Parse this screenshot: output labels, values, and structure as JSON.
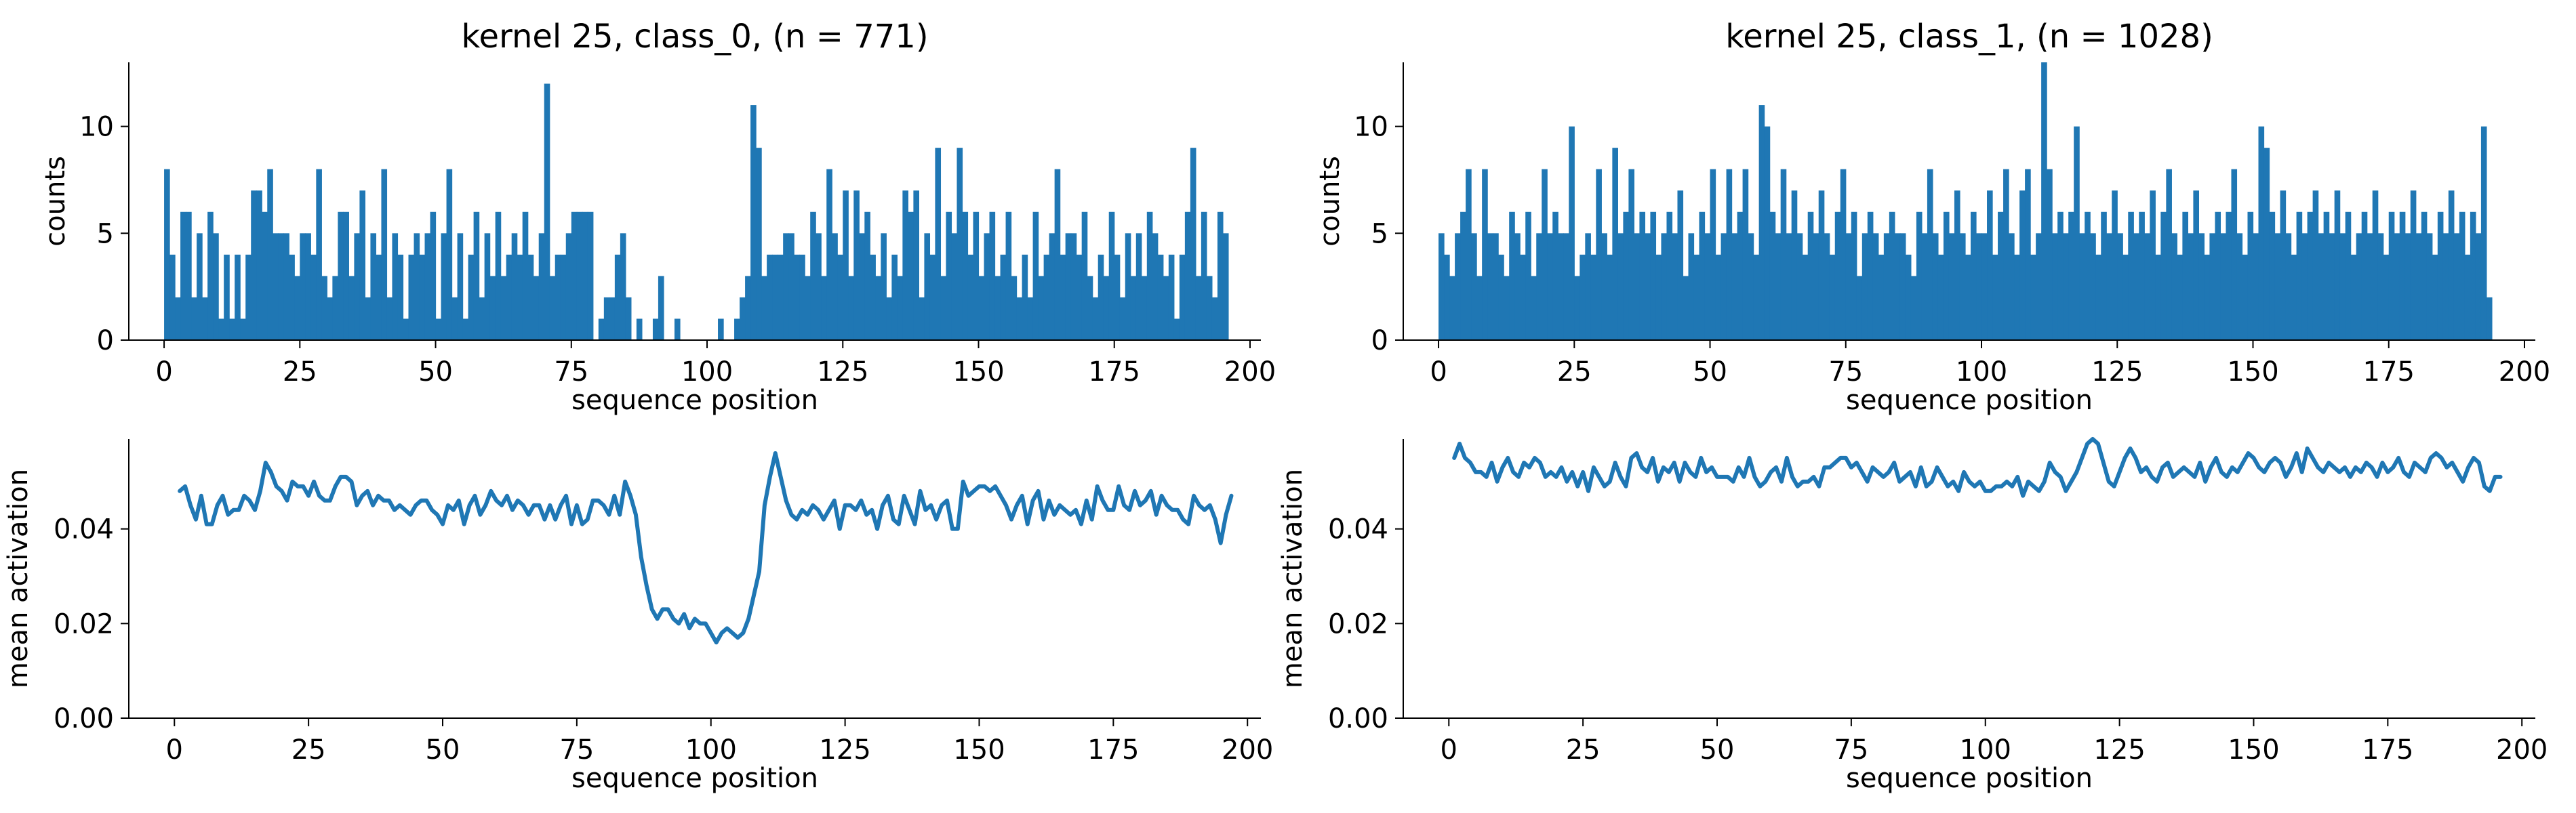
{
  "figure": {
    "background": "#ffffff",
    "series_color": "#1f77b4",
    "axis_color": "#000000"
  },
  "chart_data": [
    {
      "type": "bar",
      "title": "kernel 25, class_0, (n = 771)",
      "xlabel": "sequence position",
      "ylabel": "counts",
      "xlim": [
        -6.5,
        202
      ],
      "ylim": [
        0,
        13
      ],
      "xticks": [
        "0",
        "25",
        "50",
        "75",
        "100",
        "125",
        "150",
        "175",
        "200"
      ],
      "xtick_values": [
        0,
        25,
        50,
        75,
        100,
        125,
        150,
        175,
        200
      ],
      "yticks": [
        "0",
        "5",
        "10"
      ],
      "ytick_values": [
        0,
        5,
        10
      ],
      "grid": false,
      "x_start": 0,
      "bin_width": 1,
      "values": [
        8,
        4,
        2,
        6,
        6,
        2,
        5,
        2,
        6,
        5,
        1,
        4,
        1,
        4,
        1,
        4,
        7,
        7,
        6,
        8,
        5,
        5,
        5,
        4,
        3,
        5,
        5,
        4,
        8,
        3,
        2,
        3,
        6,
        6,
        3,
        5,
        7,
        2,
        5,
        4,
        8,
        2,
        5,
        4,
        1,
        4,
        5,
        4,
        5,
        6,
        1,
        5,
        8,
        2,
        5,
        1,
        4,
        6,
        2,
        5,
        3,
        6,
        3,
        4,
        5,
        4,
        6,
        4,
        3,
        5,
        12,
        3,
        4,
        4,
        5,
        6,
        6,
        6,
        6,
        0,
        1,
        2,
        2,
        4,
        5,
        2,
        0,
        1,
        0,
        0,
        1,
        3,
        0,
        0,
        1,
        0,
        0,
        0,
        0,
        0,
        0,
        0,
        1,
        0,
        0,
        1,
        2,
        3,
        11,
        9,
        3,
        4,
        4,
        4,
        5,
        5,
        4,
        4,
        3,
        6,
        5,
        3,
        8,
        5,
        4,
        7,
        3,
        7,
        5,
        6,
        4,
        3,
        5,
        2,
        4,
        3,
        7,
        6,
        7,
        2,
        5,
        4,
        9,
        3,
        6,
        5,
        9,
        6,
        4,
        6,
        3,
        5,
        6,
        3,
        4,
        6,
        3,
        2,
        4,
        2,
        6,
        3,
        4,
        5,
        8,
        4,
        5,
        5,
        4,
        6,
        3,
        2,
        4,
        3,
        6,
        4,
        2,
        5,
        3,
        5,
        3,
        6,
        5,
        4,
        3,
        4,
        1,
        4,
        6,
        9,
        3,
        6,
        3,
        2,
        6,
        5
      ]
    },
    {
      "type": "bar",
      "title": "kernel 25, class_1, (n = 1028)",
      "xlabel": "sequence position",
      "ylabel": "counts",
      "xlim": [
        -6.5,
        202
      ],
      "ylim": [
        0,
        13
      ],
      "xticks": [
        "0",
        "25",
        "50",
        "75",
        "100",
        "125",
        "150",
        "175",
        "200"
      ],
      "xtick_values": [
        0,
        25,
        50,
        75,
        100,
        125,
        150,
        175,
        200
      ],
      "yticks": [
        "0",
        "5",
        "10"
      ],
      "ytick_values": [
        0,
        5,
        10
      ],
      "grid": false,
      "x_start": 0,
      "bin_width": 1,
      "values": [
        5,
        4,
        3,
        5,
        6,
        8,
        5,
        3,
        8,
        5,
        5,
        4,
        3,
        6,
        5,
        4,
        6,
        3,
        5,
        8,
        5,
        6,
        5,
        5,
        10,
        3,
        4,
        5,
        4,
        8,
        5,
        4,
        9,
        5,
        6,
        8,
        5,
        6,
        5,
        6,
        4,
        5,
        6,
        5,
        7,
        3,
        5,
        4,
        6,
        5,
        8,
        4,
        5,
        8,
        5,
        6,
        8,
        5,
        4,
        11,
        10,
        6,
        5,
        8,
        5,
        7,
        5,
        4,
        6,
        5,
        7,
        5,
        4,
        6,
        8,
        5,
        6,
        3,
        5,
        6,
        5,
        4,
        5,
        6,
        5,
        5,
        4,
        3,
        6,
        5,
        8,
        5,
        4,
        6,
        5,
        7,
        5,
        4,
        6,
        5,
        5,
        7,
        4,
        6,
        8,
        5,
        4,
        7,
        8,
        4,
        5,
        13,
        8,
        5,
        6,
        5,
        6,
        10,
        5,
        6,
        5,
        4,
        6,
        5,
        7,
        5,
        4,
        6,
        5,
        6,
        5,
        7,
        4,
        6,
        8,
        5,
        4,
        6,
        5,
        7,
        5,
        4,
        5,
        6,
        5,
        6,
        8,
        5,
        4,
        6,
        5,
        10,
        9,
        6,
        5,
        7,
        5,
        4,
        6,
        5,
        6,
        7,
        5,
        6,
        5,
        7,
        5,
        6,
        4,
        5,
        6,
        5,
        7,
        5,
        4,
        6,
        5,
        6,
        5,
        7,
        5,
        6,
        5,
        4,
        6,
        5,
        7,
        5,
        6,
        4,
        6,
        5,
        10,
        2
      ]
    },
    {
      "type": "line",
      "title": "",
      "xlabel": "sequence position",
      "ylabel": "mean activation",
      "xlim": [
        -8.5,
        202.5
      ],
      "ylim": [
        0,
        0.059
      ],
      "xticks": [
        "0",
        "25",
        "50",
        "75",
        "100",
        "125",
        "150",
        "175",
        "200"
      ],
      "xtick_values": [
        0,
        25,
        50,
        75,
        100,
        125,
        150,
        175,
        200
      ],
      "yticks": [
        "0.00",
        "0.02",
        "0.04"
      ],
      "ytick_values": [
        0,
        0.02,
        0.04
      ],
      "grid": false,
      "x_start": 1,
      "x_step": 1,
      "y": [
        0.048,
        0.049,
        0.045,
        0.042,
        0.047,
        0.041,
        0.041,
        0.045,
        0.047,
        0.043,
        0.044,
        0.044,
        0.047,
        0.046,
        0.044,
        0.048,
        0.054,
        0.052,
        0.049,
        0.048,
        0.046,
        0.05,
        0.049,
        0.049,
        0.047,
        0.05,
        0.047,
        0.046,
        0.046,
        0.049,
        0.051,
        0.051,
        0.05,
        0.045,
        0.047,
        0.048,
        0.045,
        0.047,
        0.046,
        0.046,
        0.044,
        0.045,
        0.044,
        0.043,
        0.045,
        0.046,
        0.046,
        0.044,
        0.043,
        0.041,
        0.045,
        0.044,
        0.046,
        0.041,
        0.045,
        0.047,
        0.043,
        0.045,
        0.048,
        0.046,
        0.045,
        0.047,
        0.044,
        0.046,
        0.045,
        0.043,
        0.045,
        0.045,
        0.042,
        0.045,
        0.042,
        0.045,
        0.047,
        0.041,
        0.045,
        0.041,
        0.042,
        0.046,
        0.046,
        0.045,
        0.043,
        0.047,
        0.043,
        0.05,
        0.047,
        0.043,
        0.034,
        0.028,
        0.023,
        0.021,
        0.023,
        0.023,
        0.021,
        0.02,
        0.022,
        0.019,
        0.021,
        0.02,
        0.02,
        0.018,
        0.016,
        0.018,
        0.019,
        0.018,
        0.017,
        0.018,
        0.021,
        0.026,
        0.031,
        0.045,
        0.051,
        0.056,
        0.051,
        0.046,
        0.043,
        0.042,
        0.044,
        0.043,
        0.045,
        0.044,
        0.042,
        0.044,
        0.046,
        0.04,
        0.045,
        0.045,
        0.044,
        0.046,
        0.043,
        0.044,
        0.04,
        0.045,
        0.047,
        0.042,
        0.041,
        0.047,
        0.044,
        0.041,
        0.048,
        0.044,
        0.045,
        0.042,
        0.045,
        0.046,
        0.04,
        0.04,
        0.05,
        0.047,
        0.048,
        0.049,
        0.049,
        0.048,
        0.049,
        0.047,
        0.045,
        0.042,
        0.045,
        0.047,
        0.041,
        0.046,
        0.048,
        0.042,
        0.046,
        0.043,
        0.045,
        0.044,
        0.043,
        0.044,
        0.041,
        0.046,
        0.042,
        0.049,
        0.046,
        0.044,
        0.044,
        0.049,
        0.045,
        0.044,
        0.048,
        0.045,
        0.046,
        0.048,
        0.043,
        0.047,
        0.045,
        0.044,
        0.044,
        0.042,
        0.041,
        0.047,
        0.045,
        0.044,
        0.045,
        0.042,
        0.037,
        0.043,
        0.047
      ]
    },
    {
      "type": "line",
      "title": "",
      "xlabel": "sequence position",
      "ylabel": "mean activation",
      "xlim": [
        -8.5,
        202.5
      ],
      "ylim": [
        0,
        0.059
      ],
      "xticks": [
        "0",
        "25",
        "50",
        "75",
        "100",
        "125",
        "150",
        "175",
        "200"
      ],
      "xtick_values": [
        0,
        25,
        50,
        75,
        100,
        125,
        150,
        175,
        200
      ],
      "yticks": [
        "0.00",
        "0.02",
        "0.04"
      ],
      "ytick_values": [
        0,
        0.02,
        0.04
      ],
      "grid": false,
      "x_start": 1,
      "x_step": 1,
      "y": [
        0.055,
        0.058,
        0.055,
        0.054,
        0.052,
        0.052,
        0.051,
        0.054,
        0.05,
        0.053,
        0.055,
        0.052,
        0.051,
        0.054,
        0.053,
        0.055,
        0.054,
        0.051,
        0.052,
        0.051,
        0.053,
        0.05,
        0.052,
        0.049,
        0.052,
        0.048,
        0.053,
        0.051,
        0.049,
        0.05,
        0.054,
        0.051,
        0.049,
        0.055,
        0.056,
        0.053,
        0.052,
        0.055,
        0.05,
        0.053,
        0.052,
        0.054,
        0.05,
        0.054,
        0.052,
        0.051,
        0.055,
        0.052,
        0.053,
        0.051,
        0.051,
        0.051,
        0.05,
        0.053,
        0.051,
        0.055,
        0.051,
        0.049,
        0.05,
        0.052,
        0.053,
        0.05,
        0.055,
        0.051,
        0.049,
        0.05,
        0.05,
        0.051,
        0.049,
        0.053,
        0.053,
        0.054,
        0.055,
        0.055,
        0.053,
        0.054,
        0.052,
        0.05,
        0.053,
        0.052,
        0.051,
        0.052,
        0.054,
        0.05,
        0.051,
        0.052,
        0.049,
        0.053,
        0.049,
        0.05,
        0.053,
        0.051,
        0.049,
        0.05,
        0.048,
        0.052,
        0.05,
        0.049,
        0.05,
        0.048,
        0.048,
        0.049,
        0.049,
        0.05,
        0.049,
        0.051,
        0.047,
        0.05,
        0.049,
        0.048,
        0.05,
        0.054,
        0.052,
        0.051,
        0.048,
        0.05,
        0.052,
        0.055,
        0.058,
        0.059,
        0.058,
        0.054,
        0.05,
        0.049,
        0.052,
        0.055,
        0.057,
        0.055,
        0.052,
        0.053,
        0.051,
        0.05,
        0.053,
        0.054,
        0.051,
        0.052,
        0.053,
        0.052,
        0.051,
        0.054,
        0.05,
        0.053,
        0.055,
        0.052,
        0.051,
        0.053,
        0.052,
        0.054,
        0.056,
        0.055,
        0.053,
        0.052,
        0.054,
        0.055,
        0.054,
        0.051,
        0.053,
        0.056,
        0.052,
        0.057,
        0.055,
        0.053,
        0.052,
        0.054,
        0.053,
        0.052,
        0.053,
        0.051,
        0.053,
        0.052,
        0.054,
        0.053,
        0.051,
        0.054,
        0.052,
        0.053,
        0.055,
        0.052,
        0.051,
        0.054,
        0.053,
        0.052,
        0.055,
        0.056,
        0.055,
        0.053,
        0.054,
        0.052,
        0.05,
        0.053,
        0.055,
        0.054,
        0.049,
        0.048,
        0.051,
        0.051
      ]
    }
  ]
}
